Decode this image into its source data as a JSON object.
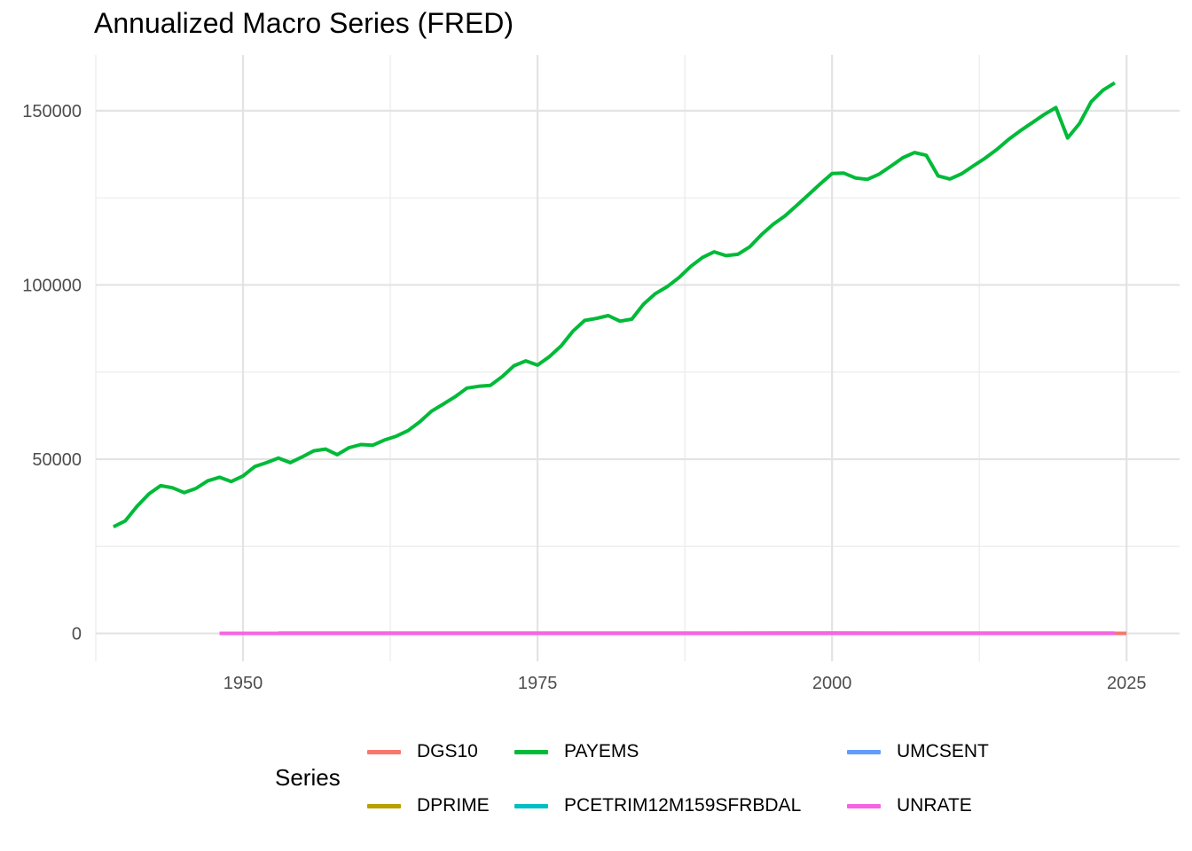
{
  "chart_data": {
    "type": "line",
    "title": "Annualized Macro Series (FRED)",
    "xlabel": "",
    "ylabel": "",
    "xlim": [
      1937.5,
      2029.5
    ],
    "ylim": [
      -8000,
      166000
    ],
    "x_ticks": [
      1950,
      1975,
      2000,
      2025
    ],
    "y_ticks": [
      0,
      50000,
      100000,
      150000
    ],
    "x_tick_labels": [
      "1950",
      "1975",
      "2000",
      "2025"
    ],
    "y_tick_labels": [
      "0",
      "50000",
      "100000",
      "150000"
    ],
    "grid": true,
    "legend_title": "Series",
    "legend_position": "bottom",
    "series": [
      {
        "name": "DGS10",
        "color": "#F8766D",
        "x": [
          1962,
          1970,
          1980,
          1990,
          2000,
          2010,
          2020,
          2025
        ],
        "values": [
          3.95,
          7.35,
          11.43,
          8.55,
          6.03,
          3.22,
          0.89,
          4.3
        ]
      },
      {
        "name": "DPRIME",
        "color": "#B79F00",
        "x": [
          1955,
          1965,
          1975,
          1985,
          1995,
          2005,
          2015,
          2024
        ],
        "values": [
          3.2,
          4.5,
          7.9,
          9.9,
          8.8,
          6.2,
          3.3,
          8.4
        ]
      },
      {
        "name": "PAYEMS",
        "color": "#00BA38",
        "x": [
          1939,
          1940,
          1941,
          1942,
          1943,
          1944,
          1945,
          1946,
          1947,
          1948,
          1949,
          1950,
          1951,
          1952,
          1953,
          1954,
          1955,
          1956,
          1957,
          1958,
          1959,
          1960,
          1961,
          1962,
          1963,
          1964,
          1965,
          1966,
          1967,
          1968,
          1969,
          1970,
          1971,
          1972,
          1973,
          1974,
          1975,
          1976,
          1977,
          1978,
          1979,
          1980,
          1981,
          1982,
          1983,
          1984,
          1985,
          1986,
          1987,
          1988,
          1989,
          1990,
          1991,
          1992,
          1993,
          1994,
          1995,
          1996,
          1997,
          1998,
          1999,
          2000,
          2001,
          2002,
          2003,
          2004,
          2005,
          2006,
          2007,
          2008,
          2009,
          2010,
          2011,
          2012,
          2013,
          2014,
          2015,
          2016,
          2017,
          2018,
          2019,
          2020,
          2021,
          2022,
          2023,
          2024
        ],
        "values": [
          30600,
          32300,
          36500,
          40000,
          42400,
          41800,
          40400,
          41600,
          43800,
          44800,
          43600,
          45200,
          47900,
          49000,
          50300,
          49000,
          50600,
          52400,
          52900,
          51300,
          53300,
          54200,
          54000,
          55500,
          56600,
          58200,
          60700,
          63800,
          65800,
          67900,
          70400,
          70900,
          71200,
          73700,
          76800,
          78200,
          77000,
          79400,
          82500,
          86700,
          89800,
          90400,
          91200,
          89600,
          90200,
          94500,
          97500,
          99500,
          102100,
          105300,
          107900,
          109500,
          108400,
          108800,
          110900,
          114400,
          117400,
          119800,
          122800,
          125900,
          129000,
          132000,
          132100,
          130700,
          130300,
          131800,
          134100,
          136500,
          138000,
          137200,
          131300,
          130400,
          131900,
          134200,
          136400,
          138900,
          141800,
          144300,
          146600,
          148900,
          150900,
          142200,
          146300,
          152600,
          155900,
          158000
        ]
      },
      {
        "name": "PCETRIM12M159SFRBDAL",
        "color": "#00BFC4",
        "x": [
          1978,
          1985,
          1990,
          2000,
          2010,
          2020,
          2024
        ],
        "values": [
          6.8,
          4.4,
          4.3,
          2.0,
          1.2,
          1.9,
          3.1
        ]
      },
      {
        "name": "UMCSENT",
        "color": "#619CFF",
        "x": [
          1953,
          1965,
          1980,
          1990,
          2000,
          2010,
          2020,
          2024
        ],
        "values": [
          86,
          99,
          64,
          81,
          107,
          71,
          81,
          72
        ]
      },
      {
        "name": "UNRATE",
        "color": "#F564E3",
        "x": [
          1948,
          1955,
          1965,
          1975,
          1982,
          1990,
          2000,
          2009,
          2020,
          2024
        ],
        "values": [
          3.8,
          4.4,
          4.5,
          8.5,
          9.7,
          5.6,
          4.0,
          9.3,
          8.1,
          4.0
        ]
      }
    ]
  }
}
